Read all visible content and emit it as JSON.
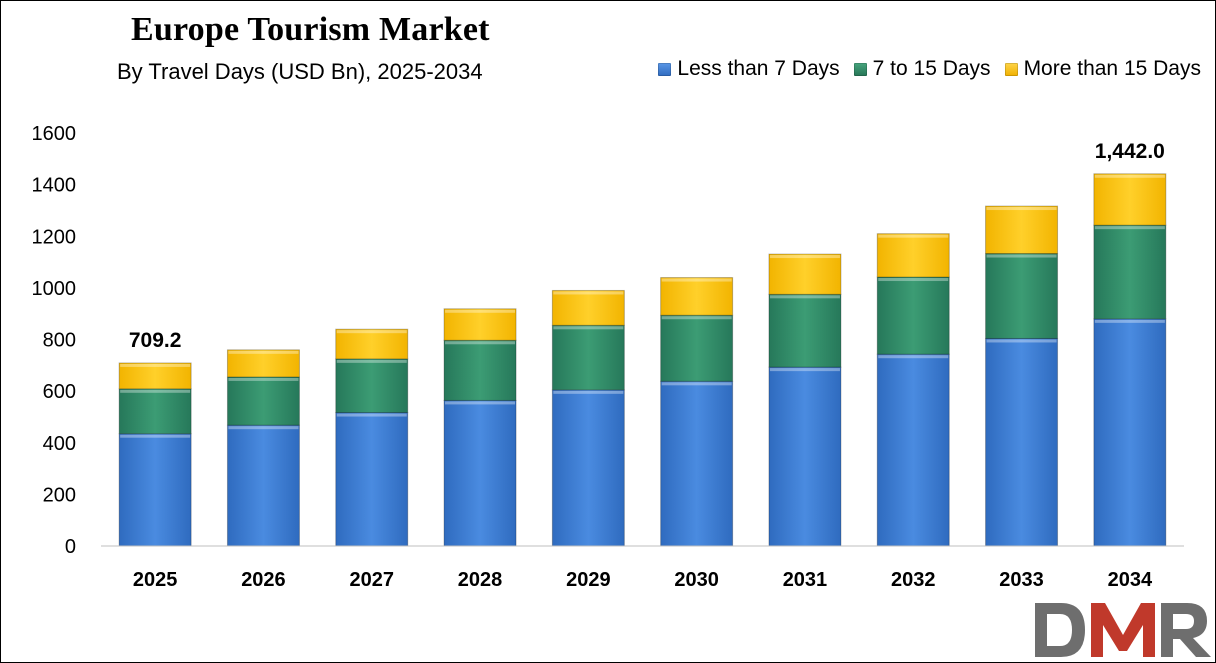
{
  "chart_data": {
    "type": "bar",
    "stacked": true,
    "title": "Europe Tourism Market",
    "subtitle": "By Travel Days (USD Bn), 2025-2034",
    "categories": [
      "2025",
      "2026",
      "2027",
      "2028",
      "2029",
      "2030",
      "2031",
      "2032",
      "2033",
      "2034"
    ],
    "series": [
      {
        "name": "Less than 7 Days",
        "color": "#3a7bd5",
        "values": [
          435,
          468,
          517,
          564,
          605,
          638,
          693,
          743,
          804,
          880
        ]
      },
      {
        "name": "7 to 15 Days",
        "color": "#2e8b66",
        "values": [
          174,
          187,
          208,
          233,
          250,
          256,
          282,
          299,
          329,
          363
        ]
      },
      {
        "name": "More than 15 Days",
        "color": "#ffc000",
        "values": [
          100.2,
          105,
          115,
          122,
          135,
          146,
          156,
          168,
          184,
          199
        ]
      }
    ],
    "annotations": [
      {
        "category": "2025",
        "text": "709.2"
      },
      {
        "category": "2034",
        "text": "1,442.0"
      }
    ],
    "ylim": [
      0,
      1600
    ],
    "yticks": [
      0,
      200,
      400,
      600,
      800,
      1000,
      1200,
      1400,
      1600
    ],
    "grid": false,
    "legend_position": "top-right",
    "xlabel": "",
    "ylabel": ""
  },
  "logo": {
    "text": "DMR",
    "colors": [
      "#6e6e6e",
      "#c0392b"
    ]
  }
}
